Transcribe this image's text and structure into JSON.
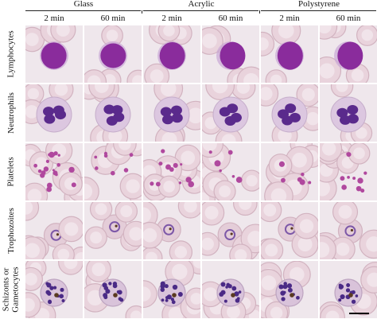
{
  "groups": [
    {
      "label": "Glass"
    },
    {
      "label": "Acrylic"
    },
    {
      "label": "Polystyrene"
    }
  ],
  "columns": [
    {
      "label": "2 min"
    },
    {
      "label": "60 min"
    },
    {
      "label": "2 min"
    },
    {
      "label": "60 min"
    },
    {
      "label": "2 min"
    },
    {
      "label": "60 min"
    }
  ],
  "rows": [
    {
      "label": "Lymphocytes"
    },
    {
      "label": "Neutrophils"
    },
    {
      "label": "Platelets"
    },
    {
      "label": "Trophozoites"
    },
    {
      "label": "Schizonts or Gametocytes"
    }
  ],
  "colors": {
    "background": "#efe7ec",
    "rbc_fill": "#e9d3dc",
    "rbc_edge": "#d2b3c0",
    "nucleus": "#8a2c9c",
    "cytoplasm": "#c9a6d6",
    "platelet": "#b0489e",
    "pigment": "#5a3a20"
  },
  "icons": {
    "scale_bar": "scale-bar-icon"
  }
}
